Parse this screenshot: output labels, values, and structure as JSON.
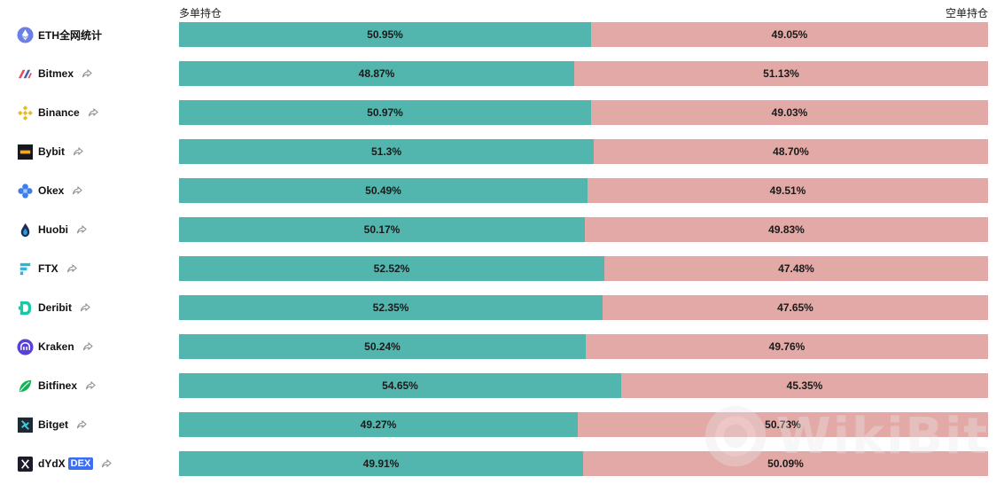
{
  "headers": {
    "long_label": "多单持仓",
    "short_label": "空单持仓"
  },
  "colors": {
    "long": "#52b6ae",
    "short": "#e3a9a6"
  },
  "watermark": "WikiBit",
  "chart_data": {
    "type": "bar",
    "orientation": "horizontal-stacked",
    "categories": [
      "ETH全网统计",
      "Bitmex",
      "Binance",
      "Bybit",
      "Okex",
      "Huobi",
      "FTX",
      "Deribit",
      "Kraken",
      "Bitfinex",
      "Bitget",
      "dYdX"
    ],
    "series": [
      {
        "name": "多单持仓",
        "values": [
          50.95,
          48.87,
          50.97,
          51.3,
          50.49,
          50.17,
          52.52,
          52.35,
          50.24,
          54.65,
          49.27,
          49.91
        ],
        "labels": [
          "50.95%",
          "48.87%",
          "50.97%",
          "51.3%",
          "50.49%",
          "50.17%",
          "52.52%",
          "52.35%",
          "50.24%",
          "54.65%",
          "49.27%",
          "49.91%"
        ]
      },
      {
        "name": "空单持仓",
        "values": [
          49.05,
          51.13,
          49.03,
          48.7,
          49.51,
          49.83,
          47.48,
          47.65,
          49.76,
          45.35,
          50.73,
          50.09
        ],
        "labels": [
          "49.05%",
          "51.13%",
          "49.03%",
          "48.70%",
          "49.51%",
          "49.83%",
          "47.48%",
          "47.65%",
          "49.76%",
          "45.35%",
          "50.73%",
          "50.09%"
        ]
      }
    ],
    "xlim": [
      0,
      100
    ]
  },
  "rows": [
    {
      "name": "ETH全网统计",
      "icon": "ethereum-icon",
      "share": false,
      "badge": ""
    },
    {
      "name": "Bitmex",
      "icon": "bitmex-icon",
      "share": true,
      "badge": ""
    },
    {
      "name": "Binance",
      "icon": "binance-icon",
      "share": true,
      "badge": ""
    },
    {
      "name": "Bybit",
      "icon": "bybit-icon",
      "share": true,
      "badge": ""
    },
    {
      "name": "Okex",
      "icon": "okex-icon",
      "share": true,
      "badge": ""
    },
    {
      "name": "Huobi",
      "icon": "huobi-icon",
      "share": true,
      "badge": ""
    },
    {
      "name": "FTX",
      "icon": "ftx-icon",
      "share": true,
      "badge": ""
    },
    {
      "name": "Deribit",
      "icon": "deribit-icon",
      "share": true,
      "badge": ""
    },
    {
      "name": "Kraken",
      "icon": "kraken-icon",
      "share": true,
      "badge": ""
    },
    {
      "name": "Bitfinex",
      "icon": "bitfinex-icon",
      "share": true,
      "badge": ""
    },
    {
      "name": "Bitget",
      "icon": "bitget-icon",
      "share": true,
      "badge": ""
    },
    {
      "name": "dYdX",
      "icon": "dydx-icon",
      "share": true,
      "badge": "DEX"
    }
  ]
}
